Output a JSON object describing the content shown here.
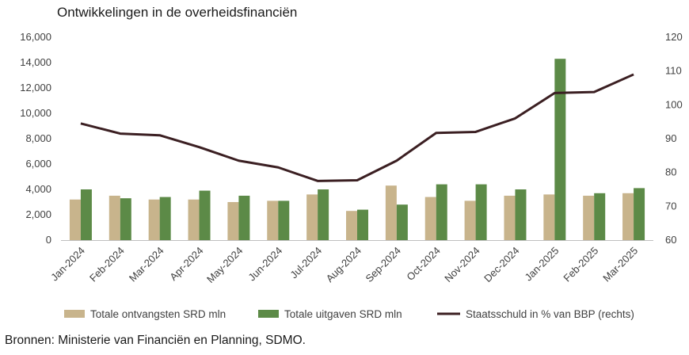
{
  "chart_data": {
    "type": "bar+line",
    "title": "Ontwikkelingen in de overheidsfinanciën",
    "categories": [
      "Jan-2024",
      "Feb-2024",
      "Mar-2024",
      "Apr-2024",
      "May-2024",
      "Jun-2024",
      "Jul-2024",
      "Aug-2024",
      "Sep-2024",
      "Oct-2024",
      "Nov-2024",
      "Dec-2024",
      "Jan-2025",
      "Feb-2025",
      "Mar-2025"
    ],
    "series": [
      {
        "name": "Totale ontvangsten SRD mln",
        "type": "bar",
        "axis": "left",
        "color": "#c8b48c",
        "values": [
          3200,
          3500,
          3200,
          3200,
          3000,
          3100,
          3600,
          2300,
          4300,
          3400,
          3100,
          3500,
          3600,
          3500,
          3700
        ]
      },
      {
        "name": "Totale uitgaven SRD mln",
        "type": "bar",
        "axis": "left",
        "color": "#5c8a47",
        "values": [
          4000,
          3300,
          3400,
          3900,
          3500,
          3100,
          4000,
          2400,
          2800,
          4400,
          4400,
          4000,
          14300,
          3700,
          4100
        ]
      },
      {
        "name": "Staatsschuld in % van BBP (rechts)",
        "type": "line",
        "axis": "right",
        "color": "#3b1f22",
        "values": [
          94.5,
          91.5,
          91.0,
          87.5,
          83.5,
          81.5,
          77.5,
          77.7,
          83.5,
          91.7,
          92.0,
          96.0,
          103.5,
          103.8,
          109.0
        ]
      }
    ],
    "y_left": {
      "min": 0,
      "max": 16000,
      "ticks": [
        "0",
        "2,000",
        "4,000",
        "6,000",
        "8,000",
        "10,000",
        "12,000",
        "14,000",
        "16,000"
      ]
    },
    "y_right": {
      "min": 60,
      "max": 120,
      "ticks": [
        "60",
        "70",
        "80",
        "90",
        "100",
        "110",
        "120"
      ]
    },
    "legend_position": "bottom",
    "grid": false
  },
  "source": "Bronnen: Ministerie van Financiën en Planning, SDMO."
}
